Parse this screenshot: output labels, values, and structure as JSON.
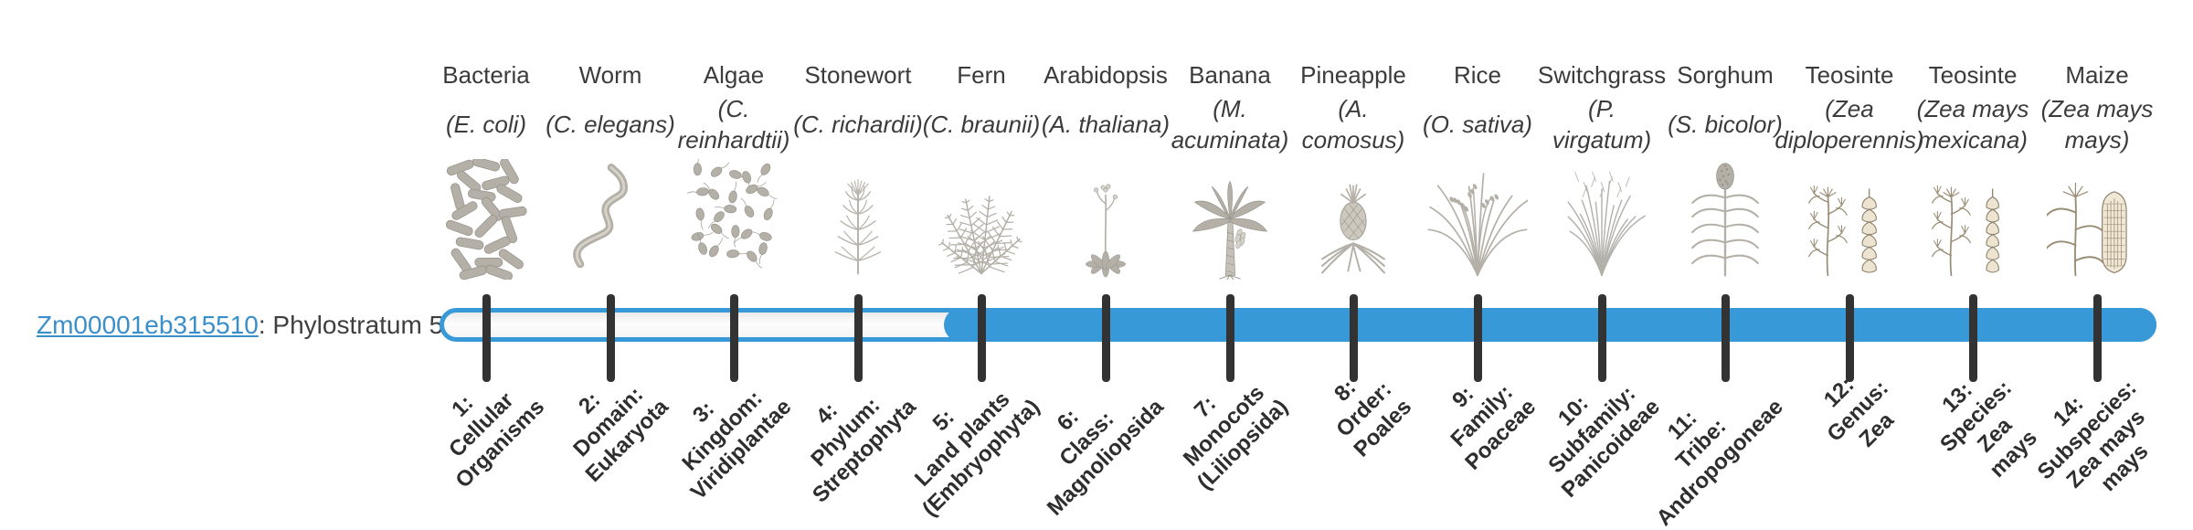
{
  "gene": {
    "id": "Zm00001eb315510",
    "suffix": ": Phylostratum 5",
    "phylostratum": 5
  },
  "timeline": {
    "total_strata": 14,
    "filled_from_stratum": 5,
    "colors": {
      "bar_fill": "#3899d8",
      "bar_border": "#3899d8",
      "track_interior": "#f7f7f7",
      "tick": "#333333",
      "link_blue": "#3a8ec9",
      "text_dark": "#3b3b3b"
    },
    "strata": [
      {
        "num": 1,
        "name": "Bacteria",
        "sci": "(E. coli)",
        "icon": "bacteria-icon",
        "rank_label": "1:\nCellular\nOrganisms"
      },
      {
        "num": 2,
        "name": "Worm",
        "sci": "(C. elegans)",
        "icon": "worm-icon",
        "rank_label": "2:\nDomain:\nEukaryota"
      },
      {
        "num": 3,
        "name": "Algae",
        "sci": "(C.\nreinhardtii)",
        "icon": "algae-icon",
        "rank_label": "3:\nKingdom:\nViridiplantae"
      },
      {
        "num": 4,
        "name": "Stonewort",
        "sci": "(C. richardii)",
        "icon": "stonewort-icon",
        "rank_label": "4:\nPhylum:\nStreptophyta"
      },
      {
        "num": 5,
        "name": "Fern",
        "sci": "(C. braunii)",
        "icon": "fern-icon",
        "rank_label": "5:\nLand plants\n(Embryophyta)"
      },
      {
        "num": 6,
        "name": "Arabidopsis",
        "sci": "(A. thaliana)",
        "icon": "arabidopsis-icon",
        "rank_label": "6:\nClass:\nMagnoliopsida"
      },
      {
        "num": 7,
        "name": "Banana",
        "sci": "(M.\nacuminata)",
        "icon": "banana-icon",
        "rank_label": "7:\nMonocots\n(Liliopsida)"
      },
      {
        "num": 8,
        "name": "Pineapple",
        "sci": "(A.\ncomosus)",
        "icon": "pineapple-icon",
        "rank_label": "8:\nOrder:\nPoales"
      },
      {
        "num": 9,
        "name": "Rice",
        "sci": "(O. sativa)",
        "icon": "rice-icon",
        "rank_label": "9:\nFamily:\nPoaceae"
      },
      {
        "num": 10,
        "name": "Switchgrass",
        "sci": "(P.\nvirgatum)",
        "icon": "switchgrass-icon",
        "rank_label": "10:\nSubfamily:\nPanicoideae"
      },
      {
        "num": 11,
        "name": "Sorghum",
        "sci": "(S. bicolor)",
        "icon": "sorghum-icon",
        "rank_label": "11:\nTribe:\nAndropogoneae"
      },
      {
        "num": 12,
        "name": "Teosinte",
        "sci": "(Zea\ndiploperennis)",
        "icon": "teosinte-diploperennis-icon",
        "rank_label": "12:\nGenus:\nZea"
      },
      {
        "num": 13,
        "name": "Teosinte",
        "sci": "(Zea mays\nmexicana)",
        "icon": "teosinte-mexicana-icon",
        "rank_label": "13:\nSpecies:\nZea\nmays"
      },
      {
        "num": 14,
        "name": "Maize",
        "sci": "(Zea mays\nmays)",
        "icon": "maize-icon",
        "rank_label": "14:\nSubspecies:\nZea mays\nmays"
      }
    ]
  }
}
